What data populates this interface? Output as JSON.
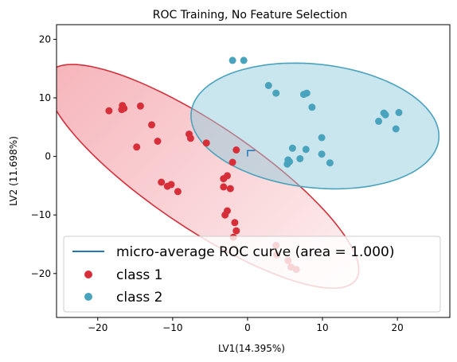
{
  "chart_data": {
    "type": "scatter",
    "title": "ROC Training, No Feature Selection",
    "xlabel": "LV1(14.395%)",
    "ylabel": "LV2 (11.698%)",
    "xlim": [
      -25.5,
      27
    ],
    "ylim": [
      -27.5,
      22.5
    ],
    "xticks": [
      -20,
      -10,
      0,
      10,
      20
    ],
    "yticks": [
      -20,
      -10,
      0,
      10,
      20
    ],
    "grid": false,
    "legend_position": "lower-center",
    "series": [
      {
        "name": "class 1",
        "color": "#d62f3a",
        "points": [
          [
            -18.5,
            7.8
          ],
          [
            -16.7,
            8.7
          ],
          [
            -16.8,
            8.0
          ],
          [
            -16.5,
            8.2
          ],
          [
            -14.3,
            8.6
          ],
          [
            -12.8,
            5.4
          ],
          [
            -12.0,
            2.6
          ],
          [
            -14.8,
            1.6
          ],
          [
            -7.8,
            3.8
          ],
          [
            -7.6,
            3.1
          ],
          [
            -5.5,
            2.3
          ],
          [
            -1.5,
            1.1
          ],
          [
            -2.0,
            -1.0
          ],
          [
            -11.5,
            -4.4
          ],
          [
            -10.7,
            -5.1
          ],
          [
            -10.2,
            -4.8
          ],
          [
            -9.3,
            -6.0
          ],
          [
            -3.2,
            -3.8
          ],
          [
            -2.7,
            -3.3
          ],
          [
            -3.2,
            -5.2
          ],
          [
            -2.3,
            -5.5
          ],
          [
            -2.7,
            -9.3
          ],
          [
            -3.0,
            -10.0
          ],
          [
            -1.7,
            -11.3
          ],
          [
            -1.5,
            -12.7
          ],
          [
            -1.9,
            -13.8
          ],
          [
            3.8,
            -15.2
          ],
          [
            3.9,
            -16.8
          ],
          [
            5.4,
            -17.8
          ],
          [
            5.8,
            -18.9
          ],
          [
            6.5,
            -19.3
          ]
        ]
      },
      {
        "name": "class 2",
        "color": "#4aa3bd",
        "points": [
          [
            -2.0,
            16.4
          ],
          [
            -0.5,
            16.4
          ],
          [
            2.8,
            12.1
          ],
          [
            3.8,
            10.8
          ],
          [
            7.5,
            10.6
          ],
          [
            7.9,
            10.8
          ],
          [
            8.6,
            8.4
          ],
          [
            18.2,
            7.4
          ],
          [
            18.4,
            7.1
          ],
          [
            20.2,
            7.5
          ],
          [
            17.5,
            6.0
          ],
          [
            19.8,
            4.7
          ],
          [
            9.9,
            3.2
          ],
          [
            6.0,
            1.4
          ],
          [
            7.8,
            1.2
          ],
          [
            9.9,
            0.4
          ],
          [
            5.4,
            -0.6
          ],
          [
            5.6,
            -0.9
          ],
          [
            5.3,
            -1.3
          ],
          [
            7.0,
            -0.4
          ],
          [
            11.0,
            -1.1
          ]
        ]
      }
    ],
    "roc_curve": {
      "name": "micro-average ROC curve (area = 1.000)",
      "color": "#1f77b4",
      "points": [
        [
          0,
          0
        ],
        [
          0,
          1
        ],
        [
          1,
          1
        ]
      ]
    },
    "ellipses": [
      {
        "series": "class 1",
        "center": [
          -6.0,
          -3.4
        ],
        "semi_axes": [
          27.1,
          8.1
        ],
        "angle_deg": -42,
        "fill": "#f08a92",
        "edge": "#d62f3a"
      },
      {
        "series": "class 2",
        "center": [
          9.0,
          5.2
        ],
        "semi_axes": [
          16.7,
          10.5
        ],
        "angle_deg": -10,
        "fill": "#93cbdc",
        "edge": "#4aa3bd"
      }
    ]
  }
}
